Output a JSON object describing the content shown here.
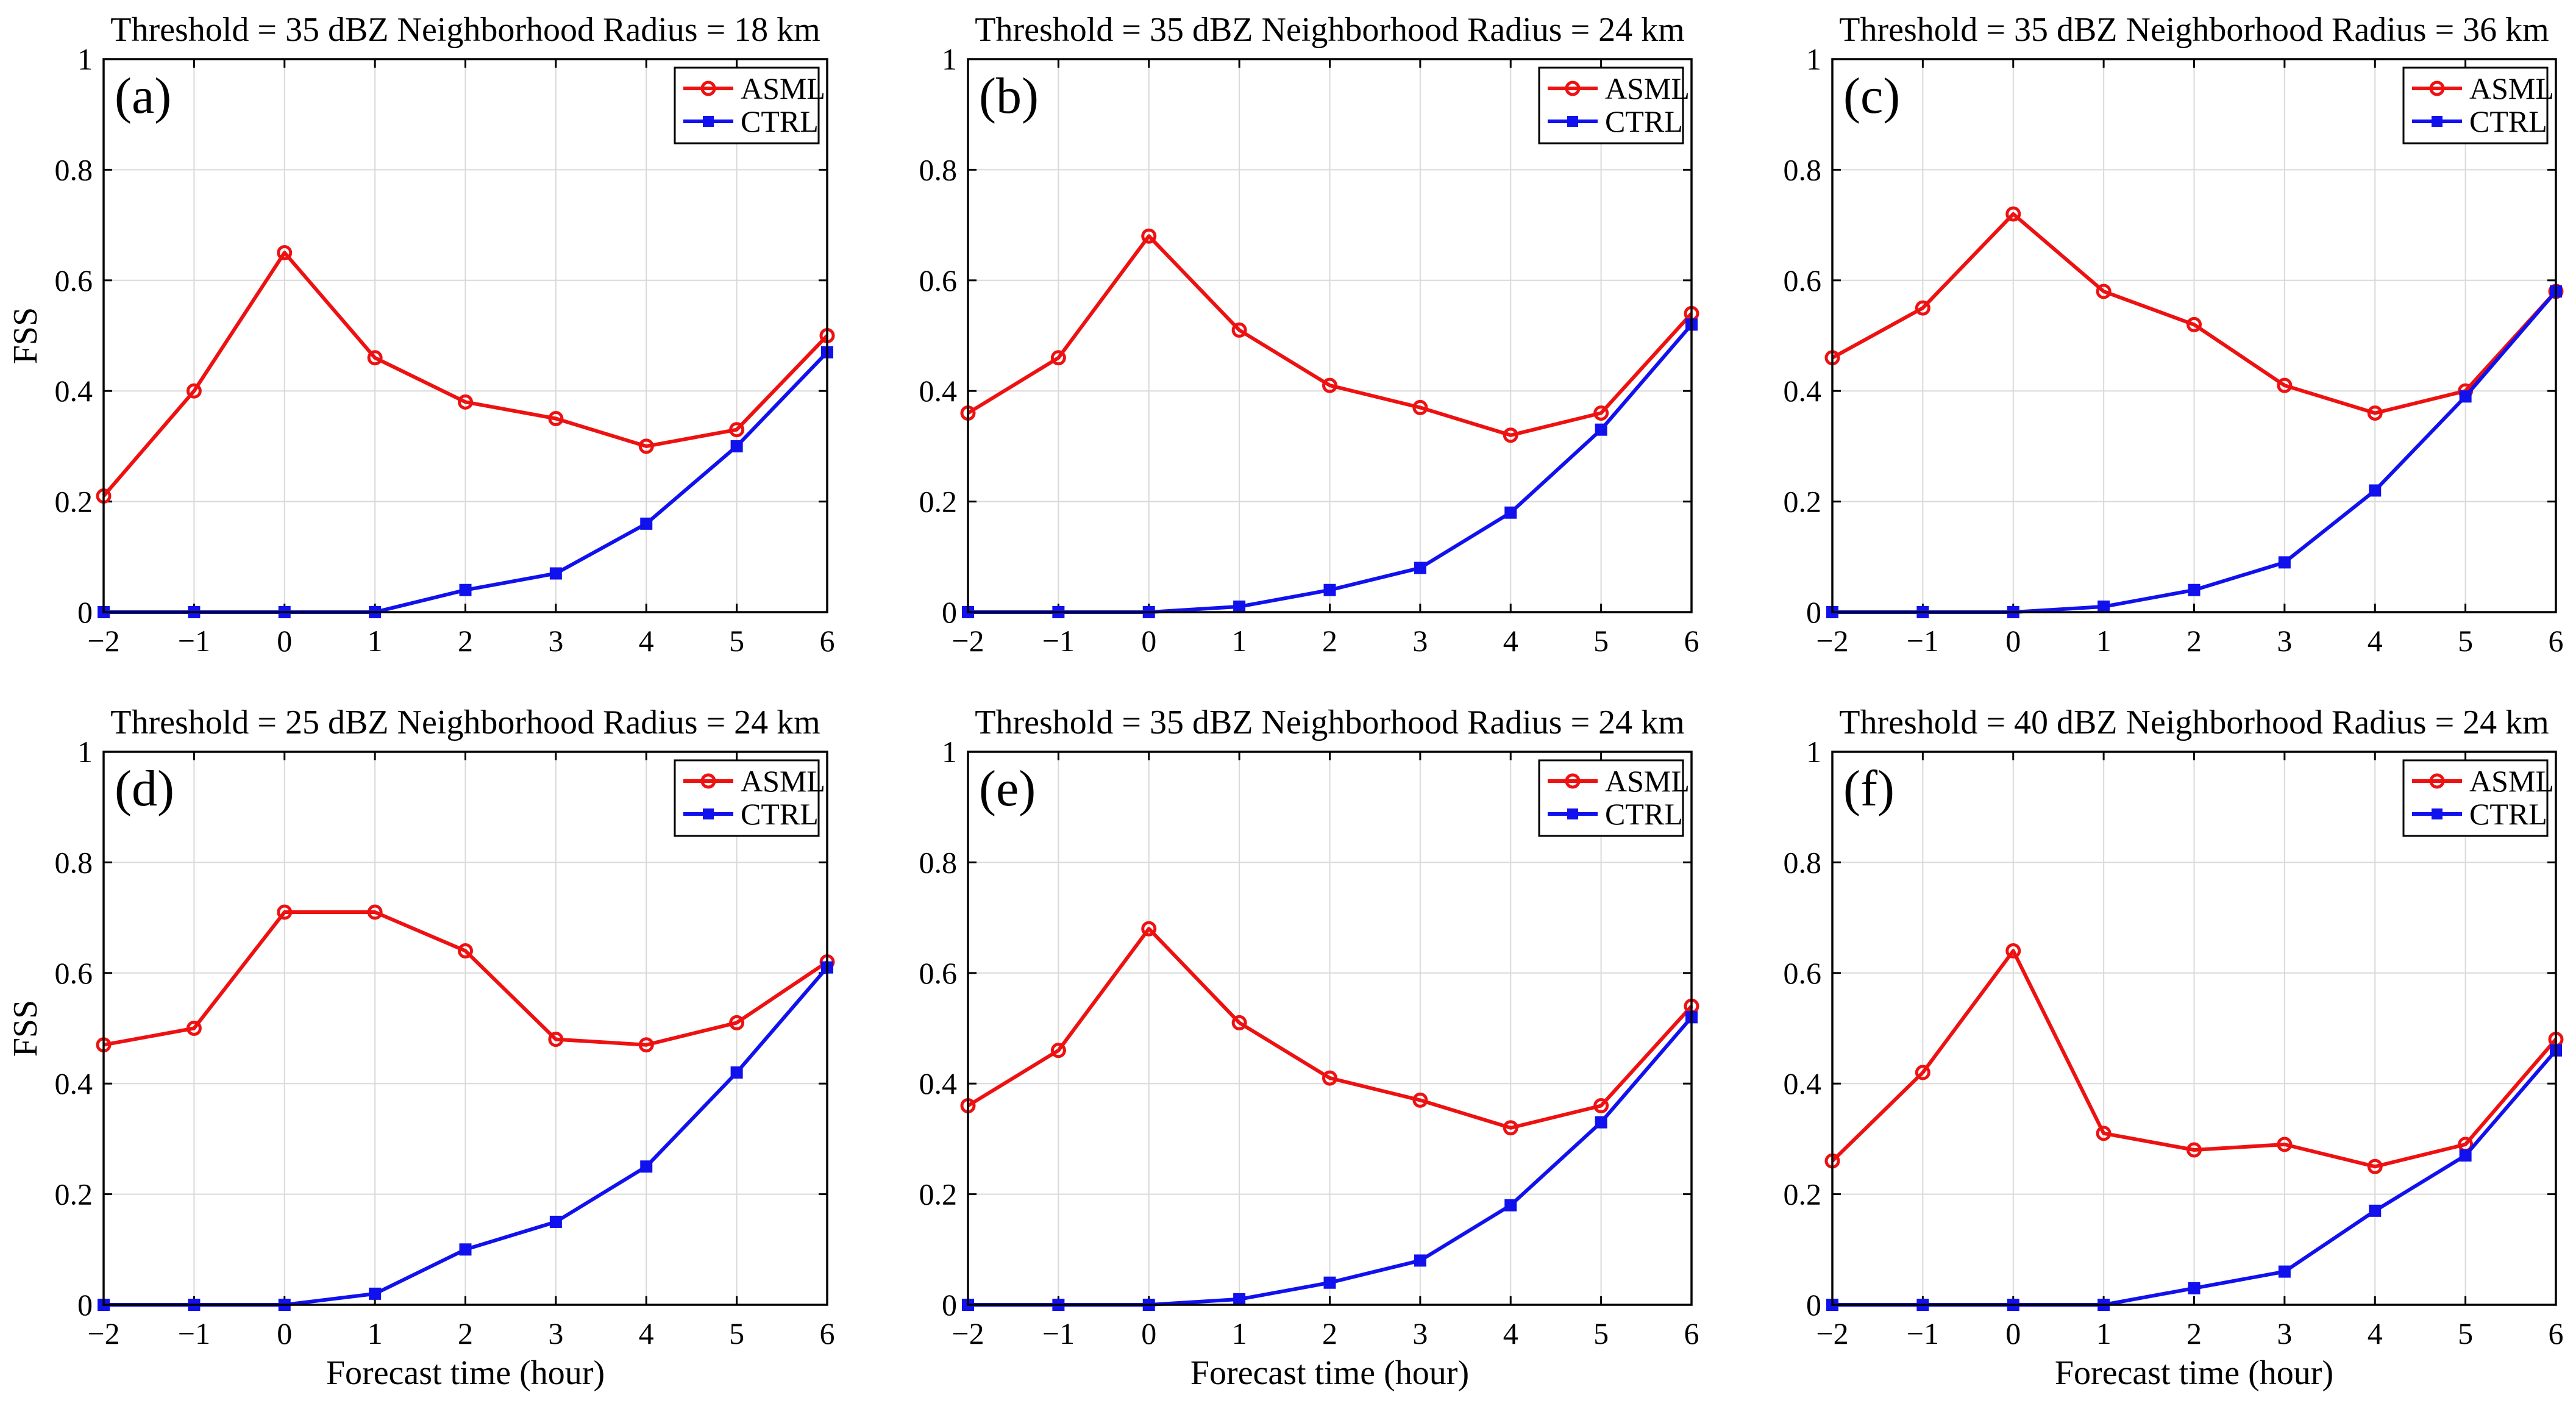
{
  "colors": {
    "asml": "#ee1111",
    "ctrl": "#1111ee",
    "grid": "#d9d9d9",
    "axis": "#000000"
  },
  "chart_data": [
    {
      "type": "line",
      "panel": "(a)",
      "title": "Threshold = 35 dBZ Neighborhood Radius = 18 km",
      "xlabel": "",
      "ylabel": "FSS",
      "x": [
        -2,
        -1,
        0,
        1,
        2,
        3,
        4,
        5,
        6
      ],
      "xticks": [
        "−2",
        "−1",
        "0",
        "1",
        "2",
        "3",
        "4",
        "5",
        "6"
      ],
      "yticks": [
        "0",
        "0.2",
        "0.4",
        "0.6",
        "0.8",
        "1"
      ],
      "xlim": [
        -2,
        6
      ],
      "ylim": [
        0,
        1
      ],
      "grid": true,
      "legend": "top-right",
      "series": [
        {
          "name": "ASML",
          "color": "#ee1111",
          "marker": "circle",
          "values": [
            0.21,
            0.4,
            0.65,
            0.46,
            0.38,
            0.35,
            0.3,
            0.33,
            0.5
          ]
        },
        {
          "name": "CTRL",
          "color": "#1111ee",
          "marker": "square",
          "values": [
            0.0,
            0.0,
            0.0,
            0.0,
            0.04,
            0.07,
            0.16,
            0.3,
            0.47
          ]
        }
      ]
    },
    {
      "type": "line",
      "panel": "(b)",
      "title": "Threshold = 35 dBZ Neighborhood Radius = 24 km",
      "xlabel": "",
      "ylabel": "",
      "x": [
        -2,
        -1,
        0,
        1,
        2,
        3,
        4,
        5,
        6
      ],
      "xticks": [
        "−2",
        "−1",
        "0",
        "1",
        "2",
        "3",
        "4",
        "5",
        "6"
      ],
      "yticks": [
        "0",
        "0.2",
        "0.4",
        "0.6",
        "0.8",
        "1"
      ],
      "xlim": [
        -2,
        6
      ],
      "ylim": [
        0,
        1
      ],
      "grid": true,
      "legend": "top-right",
      "series": [
        {
          "name": "ASML",
          "color": "#ee1111",
          "marker": "circle",
          "values": [
            0.36,
            0.46,
            0.68,
            0.51,
            0.41,
            0.37,
            0.32,
            0.36,
            0.54
          ]
        },
        {
          "name": "CTRL",
          "color": "#1111ee",
          "marker": "square",
          "values": [
            0.0,
            0.0,
            0.0,
            0.01,
            0.04,
            0.08,
            0.18,
            0.33,
            0.52
          ]
        }
      ]
    },
    {
      "type": "line",
      "panel": "(c)",
      "title": "Threshold = 35 dBZ Neighborhood Radius = 36 km",
      "xlabel": "",
      "ylabel": "",
      "x": [
        -2,
        -1,
        0,
        1,
        2,
        3,
        4,
        5,
        6
      ],
      "xticks": [
        "−2",
        "−1",
        "0",
        "1",
        "2",
        "3",
        "4",
        "5",
        "6"
      ],
      "yticks": [
        "0",
        "0.2",
        "0.4",
        "0.6",
        "0.8",
        "1"
      ],
      "xlim": [
        -2,
        6
      ],
      "ylim": [
        0,
        1
      ],
      "grid": true,
      "legend": "top-right",
      "series": [
        {
          "name": "ASML",
          "color": "#ee1111",
          "marker": "circle",
          "values": [
            0.46,
            0.55,
            0.72,
            0.58,
            0.52,
            0.41,
            0.36,
            0.4,
            0.58
          ]
        },
        {
          "name": "CTRL",
          "color": "#1111ee",
          "marker": "square",
          "values": [
            0.0,
            0.0,
            0.0,
            0.01,
            0.04,
            0.09,
            0.22,
            0.39,
            0.58
          ]
        }
      ]
    },
    {
      "type": "line",
      "panel": "(d)",
      "title": "Threshold = 25 dBZ Neighborhood Radius = 24 km",
      "xlabel": "Forecast time (hour)",
      "ylabel": "FSS",
      "x": [
        -2,
        -1,
        0,
        1,
        2,
        3,
        4,
        5,
        6
      ],
      "xticks": [
        "−2",
        "−1",
        "0",
        "1",
        "2",
        "3",
        "4",
        "5",
        "6"
      ],
      "yticks": [
        "0",
        "0.2",
        "0.4",
        "0.6",
        "0.8",
        "1"
      ],
      "xlim": [
        -2,
        6
      ],
      "ylim": [
        0,
        1
      ],
      "grid": true,
      "legend": "top-right",
      "series": [
        {
          "name": "ASML",
          "color": "#ee1111",
          "marker": "circle",
          "values": [
            0.47,
            0.5,
            0.71,
            0.71,
            0.64,
            0.48,
            0.47,
            0.51,
            0.62
          ]
        },
        {
          "name": "CTRL",
          "color": "#1111ee",
          "marker": "square",
          "values": [
            0.0,
            0.0,
            0.0,
            0.02,
            0.1,
            0.15,
            0.25,
            0.42,
            0.61
          ]
        }
      ]
    },
    {
      "type": "line",
      "panel": "(e)",
      "title": "Threshold = 35 dBZ Neighborhood Radius = 24 km",
      "xlabel": "Forecast time (hour)",
      "ylabel": "",
      "x": [
        -2,
        -1,
        0,
        1,
        2,
        3,
        4,
        5,
        6
      ],
      "xticks": [
        "−2",
        "−1",
        "0",
        "1",
        "2",
        "3",
        "4",
        "5",
        "6"
      ],
      "yticks": [
        "0",
        "0.2",
        "0.4",
        "0.6",
        "0.8",
        "1"
      ],
      "xlim": [
        -2,
        6
      ],
      "ylim": [
        0,
        1
      ],
      "grid": true,
      "legend": "top-right",
      "series": [
        {
          "name": "ASML",
          "color": "#ee1111",
          "marker": "circle",
          "values": [
            0.36,
            0.46,
            0.68,
            0.51,
            0.41,
            0.37,
            0.32,
            0.36,
            0.54
          ]
        },
        {
          "name": "CTRL",
          "color": "#1111ee",
          "marker": "square",
          "values": [
            0.0,
            0.0,
            0.0,
            0.01,
            0.04,
            0.08,
            0.18,
            0.33,
            0.52
          ]
        }
      ]
    },
    {
      "type": "line",
      "panel": "(f)",
      "title": "Threshold = 40 dBZ Neighborhood Radius = 24 km",
      "xlabel": "Forecast time (hour)",
      "ylabel": "",
      "x": [
        -2,
        -1,
        0,
        1,
        2,
        3,
        4,
        5,
        6
      ],
      "xticks": [
        "−2",
        "−1",
        "0",
        "1",
        "2",
        "3",
        "4",
        "5",
        "6"
      ],
      "yticks": [
        "0",
        "0.2",
        "0.4",
        "0.6",
        "0.8",
        "1"
      ],
      "xlim": [
        -2,
        6
      ],
      "ylim": [
        0,
        1
      ],
      "grid": true,
      "legend": "top-right",
      "series": [
        {
          "name": "ASML",
          "color": "#ee1111",
          "marker": "circle",
          "values": [
            0.26,
            0.42,
            0.64,
            0.31,
            0.28,
            0.29,
            0.25,
            0.29,
            0.48
          ]
        },
        {
          "name": "CTRL",
          "color": "#1111ee",
          "marker": "square",
          "values": [
            0.0,
            0.0,
            0.0,
            0.0,
            0.03,
            0.06,
            0.17,
            0.27,
            0.46
          ]
        }
      ]
    }
  ]
}
